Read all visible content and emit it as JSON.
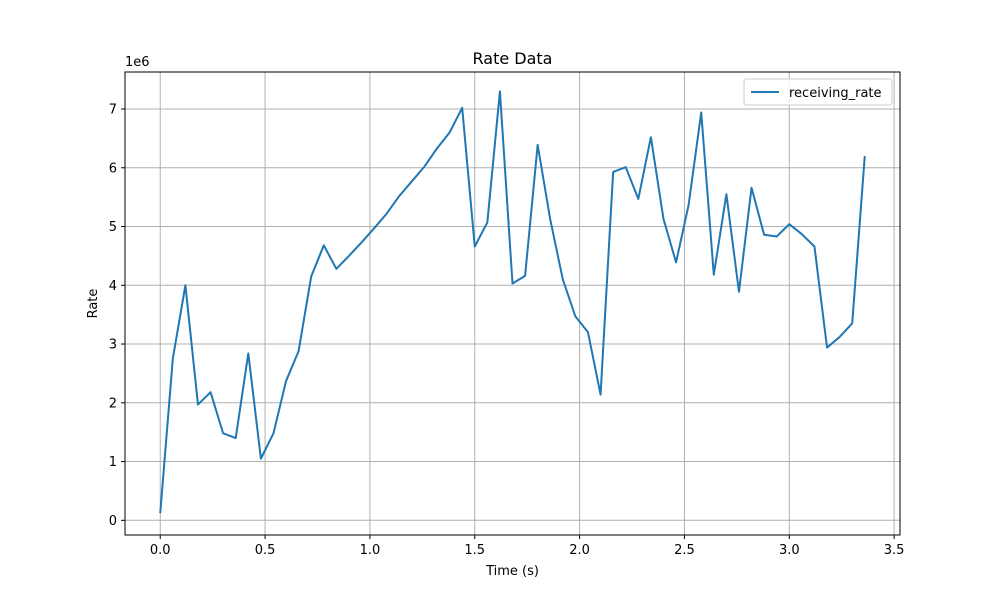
{
  "chart_data": {
    "type": "line",
    "title": "Rate Data",
    "xlabel": "Time (s)",
    "ylabel": "Rate",
    "y_offset_label": "1e6",
    "xlim": [
      -0.168,
      3.528
    ],
    "ylim": [
      -0.25,
      7.63
    ],
    "x_ticks": [
      0.0,
      0.5,
      1.0,
      1.5,
      2.0,
      2.5,
      3.0,
      3.5
    ],
    "x_tick_labels": [
      "0.0",
      "0.5",
      "1.0",
      "1.5",
      "2.0",
      "2.5",
      "3.0",
      "3.5"
    ],
    "y_ticks": [
      0,
      1,
      2,
      3,
      4,
      5,
      6,
      7
    ],
    "y_tick_labels": [
      "0",
      "1",
      "2",
      "3",
      "4",
      "5",
      "6",
      "7"
    ],
    "grid": true,
    "legend_position": "top-right",
    "series": [
      {
        "name": "receiving_rate",
        "color": "#1f77b4",
        "x": [
          0.0,
          0.06,
          0.12,
          0.18,
          0.24,
          0.3,
          0.36,
          0.42,
          0.48,
          0.54,
          0.6,
          0.66,
          0.72,
          0.78,
          0.84,
          0.9,
          0.96,
          1.02,
          1.08,
          1.14,
          1.2,
          1.26,
          1.32,
          1.38,
          1.44,
          1.5,
          1.56,
          1.62,
          1.68,
          1.74,
          1.8,
          1.86,
          1.92,
          1.98,
          2.04,
          2.1,
          2.16,
          2.22,
          2.28,
          2.34,
          2.4,
          2.46,
          2.52,
          2.58,
          2.64,
          2.7,
          2.76,
          2.82,
          2.88,
          2.94,
          3.0,
          3.06,
          3.12,
          3.18,
          3.24,
          3.3,
          3.36
        ],
        "y": [
          0.12,
          2.75,
          4.0,
          1.97,
          2.18,
          1.48,
          1.4,
          2.84,
          1.05,
          1.48,
          2.37,
          2.88,
          4.15,
          4.68,
          4.28,
          4.5,
          4.73,
          4.97,
          5.22,
          5.52,
          5.77,
          6.02,
          6.33,
          6.6,
          7.02,
          4.66,
          5.07,
          7.3,
          4.03,
          4.16,
          6.39,
          5.12,
          4.1,
          3.47,
          3.2,
          2.14,
          5.93,
          6.01,
          5.47,
          6.52,
          5.13,
          4.39,
          5.37,
          6.94,
          4.18,
          5.55,
          3.89,
          5.66,
          4.86,
          4.83,
          5.04,
          4.87,
          4.66,
          2.94,
          3.12,
          3.35,
          6.2
        ]
      }
    ]
  }
}
